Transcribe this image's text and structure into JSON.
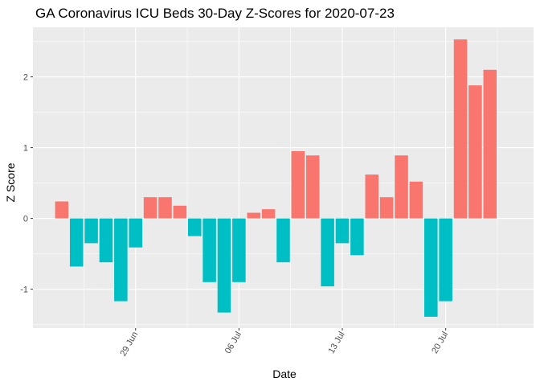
{
  "chart_data": {
    "type": "bar",
    "title": "GA Coronavirus ICU Beds 30-Day Z-Scores for 2020-07-23",
    "xlabel": "Date",
    "ylabel": "Z Score",
    "x_type": "date",
    "x_ticks": [
      {
        "date": "2020-06-29",
        "label": "29 Jun"
      },
      {
        "date": "2020-07-06",
        "label": "06 Jul"
      },
      {
        "date": "2020-07-13",
        "label": "13 Jul"
      },
      {
        "date": "2020-07-20",
        "label": "20 Jul"
      }
    ],
    "y_ticks": [
      -1,
      0,
      1,
      2
    ],
    "ylim": [
      -1.55,
      2.7
    ],
    "xlim": [
      "2020-06-24",
      "2020-07-24"
    ],
    "grid": true,
    "legend": "none",
    "colors": {
      "positive": "#F8766D",
      "negative": "#00BFC4",
      "panel": "#EBEBEB",
      "grid": "#FFFFFF"
    },
    "dates": [
      "2020-06-24",
      "2020-06-25",
      "2020-06-26",
      "2020-06-27",
      "2020-06-28",
      "2020-06-29",
      "2020-06-30",
      "2020-07-01",
      "2020-07-02",
      "2020-07-03",
      "2020-07-04",
      "2020-07-05",
      "2020-07-06",
      "2020-07-07",
      "2020-07-08",
      "2020-07-09",
      "2020-07-10",
      "2020-07-11",
      "2020-07-12",
      "2020-07-13",
      "2020-07-14",
      "2020-07-15",
      "2020-07-16",
      "2020-07-17",
      "2020-07-18",
      "2020-07-19",
      "2020-07-20",
      "2020-07-21",
      "2020-07-22",
      "2020-07-23"
    ],
    "values": [
      0.24,
      -0.68,
      -0.35,
      -0.62,
      -1.17,
      -0.41,
      0.3,
      0.3,
      0.18,
      -0.25,
      -0.9,
      -1.33,
      -0.9,
      0.08,
      0.13,
      -0.62,
      0.95,
      0.89,
      -0.96,
      -0.35,
      -0.52,
      0.62,
      0.3,
      0.89,
      0.52,
      -1.39,
      -1.17,
      2.53,
      1.88,
      2.1
    ]
  }
}
